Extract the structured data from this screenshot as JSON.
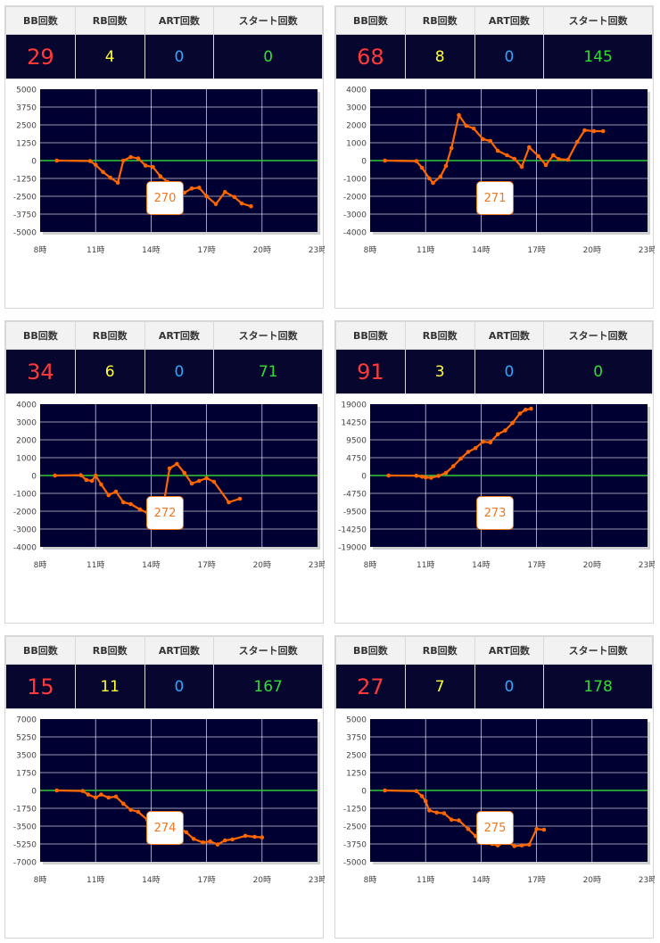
{
  "headers": {
    "bb": "BB回数",
    "rb": "RB回数",
    "art": "ART回数",
    "start": "スタート回数"
  },
  "x_tick_labels": [
    "8時",
    "11時",
    "14時",
    "17時",
    "20時",
    "23時"
  ],
  "colors": {
    "stats_bg": "#06062e",
    "bb": "#ff3a3a",
    "rb": "#ffff33",
    "art": "#2ea8ff",
    "start": "#33dd33",
    "plot_bg": "#000033",
    "line": "#ff6600",
    "zero_line": "#33cc33",
    "button": "#ee7722"
  },
  "machines": [
    {
      "number": "270",
      "bb": "29",
      "rb": "4",
      "art": "0",
      "start": "0",
      "y_ticks": [
        "5000",
        "3750",
        "2500",
        "1250",
        "0",
        "-1250",
        "-2500",
        "-3750",
        "-5000"
      ],
      "chart_data": {
        "type": "line",
        "x_unit": "hour",
        "xlim": [
          8,
          23
        ],
        "ylim": [
          -5000,
          5000
        ],
        "grid": true,
        "points": [
          [
            8.9,
            0
          ],
          [
            10.7,
            -30
          ],
          [
            11.0,
            -300
          ],
          [
            11.4,
            -800
          ],
          [
            11.8,
            -1200
          ],
          [
            12.2,
            -1550
          ],
          [
            12.5,
            0
          ],
          [
            12.9,
            250
          ],
          [
            13.3,
            150
          ],
          [
            13.7,
            -350
          ],
          [
            14.1,
            -450
          ],
          [
            14.5,
            -1100
          ],
          [
            14.9,
            -1500
          ],
          [
            15.3,
            -1750
          ],
          [
            15.8,
            -2250
          ],
          [
            16.2,
            -1950
          ],
          [
            16.6,
            -1900
          ],
          [
            17.0,
            -2500
          ],
          [
            17.5,
            -3050
          ],
          [
            18.0,
            -2200
          ],
          [
            18.5,
            -2550
          ],
          [
            18.9,
            -3000
          ],
          [
            19.4,
            -3200
          ]
        ]
      }
    },
    {
      "number": "271",
      "bb": "68",
      "rb": "8",
      "art": "0",
      "start": "145",
      "y_ticks": [
        "4000",
        "3000",
        "2000",
        "1000",
        "0",
        "-1000",
        "-2000",
        "-3000",
        "-4000"
      ],
      "chart_data": {
        "type": "line",
        "x_unit": "hour",
        "xlim": [
          8,
          23
        ],
        "ylim": [
          -4000,
          4000
        ],
        "grid": true,
        "points": [
          [
            8.8,
            0
          ],
          [
            10.5,
            -30
          ],
          [
            10.8,
            -400
          ],
          [
            11.2,
            -1000
          ],
          [
            11.4,
            -1250
          ],
          [
            11.8,
            -900
          ],
          [
            12.1,
            -300
          ],
          [
            12.4,
            700
          ],
          [
            12.8,
            2550
          ],
          [
            13.2,
            1950
          ],
          [
            13.6,
            1800
          ],
          [
            14.1,
            1200
          ],
          [
            14.5,
            1100
          ],
          [
            14.9,
            550
          ],
          [
            15.4,
            300
          ],
          [
            15.8,
            100
          ],
          [
            16.2,
            -350
          ],
          [
            16.6,
            750
          ],
          [
            17.1,
            250
          ],
          [
            17.5,
            -250
          ],
          [
            17.9,
            300
          ],
          [
            18.2,
            80
          ],
          [
            18.7,
            50
          ],
          [
            19.2,
            1050
          ],
          [
            19.6,
            1700
          ],
          [
            20.1,
            1650
          ],
          [
            20.6,
            1650
          ]
        ]
      }
    },
    {
      "number": "272",
      "bb": "34",
      "rb": "6",
      "art": "0",
      "start": "71",
      "y_ticks": [
        "4000",
        "3000",
        "2000",
        "1000",
        "0",
        "-1000",
        "-2000",
        "-3000",
        "-4000"
      ],
      "chart_data": {
        "type": "line",
        "x_unit": "hour",
        "xlim": [
          8,
          23
        ],
        "ylim": [
          -4000,
          4000
        ],
        "grid": true,
        "points": [
          [
            8.8,
            0
          ],
          [
            10.2,
            20
          ],
          [
            10.5,
            -250
          ],
          [
            10.8,
            -300
          ],
          [
            11.0,
            0
          ],
          [
            11.3,
            -500
          ],
          [
            11.7,
            -1100
          ],
          [
            12.1,
            -900
          ],
          [
            12.5,
            -1500
          ],
          [
            12.9,
            -1600
          ],
          [
            13.4,
            -1900
          ],
          [
            13.8,
            -2100
          ],
          [
            14.2,
            -2250
          ],
          [
            14.6,
            -2100
          ],
          [
            15.0,
            400
          ],
          [
            15.4,
            650
          ],
          [
            15.8,
            150
          ],
          [
            16.2,
            -450
          ],
          [
            16.6,
            -300
          ],
          [
            17.0,
            -150
          ],
          [
            17.4,
            -350
          ],
          [
            18.2,
            -1500
          ],
          [
            18.8,
            -1300
          ]
        ]
      }
    },
    {
      "number": "273",
      "bb": "91",
      "rb": "3",
      "art": "0",
      "start": "0",
      "y_ticks": [
        "19000",
        "14250",
        "9500",
        "4750",
        "0",
        "-4750",
        "-9500",
        "-14250",
        "-19000"
      ],
      "chart_data": {
        "type": "line",
        "x_unit": "hour",
        "xlim": [
          8,
          23
        ],
        "ylim": [
          -19000,
          19000
        ],
        "grid": true,
        "points": [
          [
            9.0,
            0
          ],
          [
            10.5,
            -50
          ],
          [
            10.8,
            -300
          ],
          [
            11.0,
            -500
          ],
          [
            11.3,
            -600
          ],
          [
            11.7,
            -100
          ],
          [
            12.1,
            700
          ],
          [
            12.5,
            2500
          ],
          [
            12.9,
            4500
          ],
          [
            13.3,
            6300
          ],
          [
            13.7,
            7300
          ],
          [
            14.1,
            9000
          ],
          [
            14.5,
            8800
          ],
          [
            14.9,
            11000
          ],
          [
            15.3,
            12000
          ],
          [
            15.7,
            14000
          ],
          [
            16.1,
            16500
          ],
          [
            16.4,
            17500
          ],
          [
            16.7,
            17800
          ]
        ]
      }
    },
    {
      "number": "274",
      "bb": "15",
      "rb": "11",
      "art": "0",
      "start": "167",
      "y_ticks": [
        "7000",
        "5250",
        "3500",
        "1750",
        "0",
        "-1750",
        "-3500",
        "-5250",
        "-7000"
      ],
      "chart_data": {
        "type": "line",
        "x_unit": "hour",
        "xlim": [
          8,
          23
        ],
        "ylim": [
          -7000,
          7000
        ],
        "grid": true,
        "points": [
          [
            8.9,
            0
          ],
          [
            10.3,
            -50
          ],
          [
            10.6,
            -400
          ],
          [
            11.0,
            -700
          ],
          [
            11.3,
            -400
          ],
          [
            11.7,
            -700
          ],
          [
            12.1,
            -600
          ],
          [
            12.5,
            -1300
          ],
          [
            12.9,
            -1900
          ],
          [
            13.3,
            -2100
          ],
          [
            13.8,
            -2900
          ],
          [
            14.2,
            -2850
          ],
          [
            14.6,
            -3000
          ],
          [
            15.0,
            -3500
          ],
          [
            15.5,
            -3650
          ],
          [
            15.9,
            -4100
          ],
          [
            16.3,
            -4750
          ],
          [
            16.8,
            -5100
          ],
          [
            17.2,
            -5000
          ],
          [
            17.6,
            -5300
          ],
          [
            18.0,
            -4900
          ],
          [
            18.4,
            -4800
          ],
          [
            19.1,
            -4450
          ],
          [
            19.6,
            -4550
          ],
          [
            20.0,
            -4600
          ]
        ]
      }
    },
    {
      "number": "275",
      "bb": "27",
      "rb": "7",
      "art": "0",
      "start": "178",
      "y_ticks": [
        "5000",
        "3750",
        "2500",
        "1250",
        "0",
        "-1250",
        "-2500",
        "-3750",
        "-5000"
      ],
      "chart_data": {
        "type": "line",
        "x_unit": "hour",
        "xlim": [
          8,
          23
        ],
        "ylim": [
          -5000,
          5000
        ],
        "grid": true,
        "points": [
          [
            8.8,
            0
          ],
          [
            10.5,
            -50
          ],
          [
            10.8,
            -400
          ],
          [
            11.0,
            -750
          ],
          [
            11.2,
            -1400
          ],
          [
            11.6,
            -1550
          ],
          [
            12.0,
            -1600
          ],
          [
            12.4,
            -2050
          ],
          [
            12.8,
            -2100
          ],
          [
            13.3,
            -2700
          ],
          [
            13.7,
            -3200
          ],
          [
            14.1,
            -3550
          ],
          [
            14.6,
            -3750
          ],
          [
            14.9,
            -3850
          ],
          [
            15.4,
            -3600
          ],
          [
            15.8,
            -3900
          ],
          [
            16.2,
            -3850
          ],
          [
            16.6,
            -3800
          ],
          [
            17.0,
            -2700
          ],
          [
            17.4,
            -2750
          ]
        ]
      }
    }
  ]
}
